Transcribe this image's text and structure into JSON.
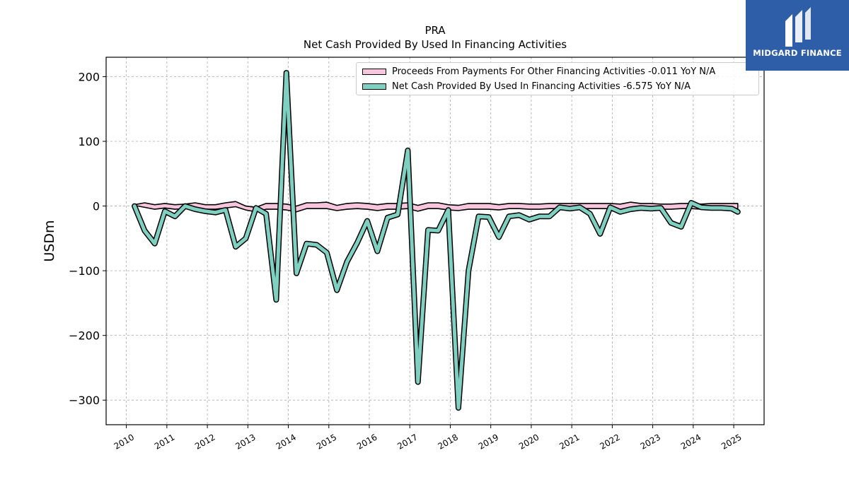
{
  "chart_data": {
    "type": "area",
    "title": "PRA",
    "subtitle": "Net Cash Provided By Used In Financing Activities",
    "ylabel": "USDm",
    "xlabel": "",
    "xlim": [
      2009.5,
      2025.75
    ],
    "ylim": [
      -338,
      230
    ],
    "yticks": [
      200,
      100,
      0,
      -100,
      -200,
      -300
    ],
    "ytick_labels": [
      "200",
      "100",
      "0",
      "−100",
      "−200",
      "−300"
    ],
    "xticks": [
      2010,
      2011,
      2012,
      2013,
      2014,
      2015,
      2016,
      2017,
      2018,
      2019,
      2020,
      2021,
      2022,
      2023,
      2024,
      2025
    ],
    "xtick_labels": [
      "2010",
      "2011",
      "2012",
      "2013",
      "2014",
      "2015",
      "2016",
      "2017",
      "2018",
      "2019",
      "2020",
      "2021",
      "2022",
      "2023",
      "2024",
      "2025"
    ],
    "grid": true,
    "legend_position": "top-right",
    "series": [
      {
        "name": "Proceeds From Payments For Other Financing Activities  -0.011 YoY N/A",
        "color": "#f7c6dc",
        "x": [
          2010.2,
          2010.45,
          2010.7,
          2010.95,
          2011.2,
          2011.45,
          2011.7,
          2011.95,
          2012.2,
          2012.45,
          2012.7,
          2012.95,
          2013.2,
          2013.45,
          2013.7,
          2013.95,
          2014.2,
          2014.45,
          2014.7,
          2014.95,
          2015.2,
          2015.45,
          2015.7,
          2015.95,
          2016.2,
          2016.45,
          2016.7,
          2016.95,
          2017.2,
          2017.45,
          2017.7,
          2017.95,
          2018.2,
          2018.45,
          2018.7,
          2018.95,
          2019.2,
          2019.45,
          2019.7,
          2019.95,
          2020.2,
          2020.45,
          2020.7,
          2020.95,
          2021.2,
          2021.45,
          2021.7,
          2021.95,
          2022.2,
          2022.45,
          2022.7,
          2022.95,
          2023.2,
          2023.45,
          2023.7,
          2023.95,
          2024.2,
          2024.45,
          2024.7,
          2024.95,
          2025.1
        ],
        "upper": [
          2,
          5,
          2,
          4,
          2,
          3,
          5,
          2,
          2,
          5,
          7,
          0,
          -2,
          4,
          4,
          3,
          0,
          5,
          5,
          6,
          1,
          4,
          5,
          4,
          2,
          4,
          4,
          5,
          1,
          5,
          5,
          2,
          1,
          4,
          4,
          4,
          2,
          4,
          4,
          3,
          3,
          4,
          4,
          4,
          4,
          4,
          4,
          4,
          3,
          6,
          4,
          4,
          3,
          3,
          4,
          4,
          3,
          4,
          4,
          4,
          4
        ],
        "lower": [
          1,
          -2,
          -5,
          -3,
          -5,
          -4,
          -2,
          -5,
          -5,
          -3,
          -1,
          -6,
          -9,
          -5,
          -5,
          -6,
          -9,
          -4,
          -4,
          -4,
          -7,
          -5,
          -4,
          -5,
          -7,
          -5,
          -5,
          -4,
          -8,
          -4,
          -4,
          -6,
          -7,
          -5,
          -5,
          -5,
          -6,
          -4,
          -4,
          -5,
          -5,
          -4,
          -4,
          -4,
          -4,
          -4,
          -4,
          -4,
          -5,
          -2,
          -4,
          -4,
          -5,
          -5,
          -4,
          -4,
          -5,
          -4,
          -4,
          -4,
          -4
        ]
      },
      {
        "name": "Net Cash Provided By Used In Financing Activities  -6.575 YoY N/A",
        "color": "#7fd0c0",
        "x": [
          2010.2,
          2010.45,
          2010.7,
          2010.95,
          2011.2,
          2011.45,
          2011.7,
          2011.95,
          2012.2,
          2012.45,
          2012.7,
          2012.95,
          2013.2,
          2013.45,
          2013.7,
          2013.95,
          2014.2,
          2014.45,
          2014.7,
          2014.95,
          2015.2,
          2015.45,
          2015.7,
          2015.95,
          2016.2,
          2016.45,
          2016.7,
          2016.95,
          2017.2,
          2017.45,
          2017.7,
          2017.95,
          2018.2,
          2018.45,
          2018.7,
          2018.95,
          2019.2,
          2019.45,
          2019.7,
          2019.95,
          2020.2,
          2020.45,
          2020.7,
          2020.95,
          2021.2,
          2021.45,
          2021.7,
          2021.95,
          2022.2,
          2022.45,
          2022.7,
          2022.95,
          2023.2,
          2023.45,
          2023.7,
          2023.95,
          2024.2,
          2024.45,
          2024.7,
          2024.95,
          2025.1
        ],
        "values": [
          0,
          -38,
          -58,
          -8,
          -16,
          0,
          -5,
          -8,
          -10,
          -6,
          -63,
          -50,
          -3,
          -12,
          -145,
          206,
          -104,
          -58,
          -60,
          -72,
          -130,
          -86,
          -57,
          -23,
          -70,
          -18,
          -13,
          86,
          -272,
          -37,
          -38,
          -6,
          -312,
          -100,
          -16,
          -17,
          -48,
          -16,
          -14,
          -21,
          -16,
          -16,
          -2,
          -4,
          -2,
          -12,
          -43,
          -2,
          -9,
          -5,
          -3,
          -4,
          -3,
          -26,
          -32,
          5,
          -2,
          -3,
          -3,
          -4,
          -9
        ]
      }
    ]
  },
  "logo": {
    "text": "MIDGARD FINANCE"
  }
}
